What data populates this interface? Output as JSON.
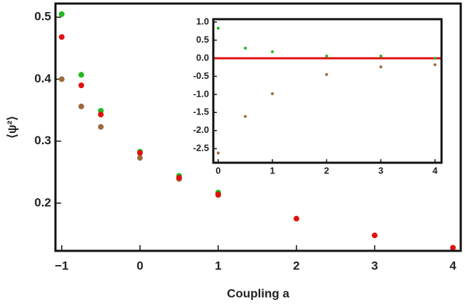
{
  "chart_data": [
    {
      "type": "scatter",
      "xlabel": "Coupling a",
      "ylabel": "⟨ψ²⟩",
      "x": [
        -1,
        -0.75,
        -0.5,
        0,
        0.5,
        1,
        2,
        3,
        4
      ],
      "series": [
        {
          "color": "#22b822",
          "values": [
            0.505,
            0.407,
            0.349,
            0.283,
            0.244,
            0.217,
            null,
            null,
            null
          ]
        },
        {
          "color": "#9b6b3c",
          "values": [
            0.4,
            0.356,
            0.323,
            0.273,
            0.239,
            0.213,
            null,
            null,
            null
          ]
        },
        {
          "color": "#e01010",
          "values": [
            0.468,
            0.39,
            0.343,
            0.281,
            0.241,
            0.214,
            0.175,
            0.148,
            0.128
          ]
        }
      ],
      "xlim": [
        -1.08,
        4.1
      ],
      "ylim": [
        0.123,
        0.522
      ],
      "xticks": [
        {
          "value": -1,
          "label": "−1"
        },
        0,
        1,
        2,
        3,
        4
      ],
      "yticks": [
        0.2,
        0.3,
        0.4,
        0.5
      ]
    },
    {
      "type": "scatter",
      "x": [
        0,
        0.5,
        1,
        2,
        3,
        4
      ],
      "series": [
        {
          "color": "#22b822",
          "values": [
            0.83,
            0.28,
            0.18,
            0.06,
            0.06,
            0
          ]
        },
        {
          "color": "#9b6b3c",
          "values": [
            -2.62,
            -1.61,
            -0.98,
            -0.45,
            -0.24,
            -0.18
          ]
        }
      ],
      "hline": 0,
      "hline_color": "#e01010",
      "xlim": [
        -0.09,
        4.12
      ],
      "ylim": [
        -2.89,
        1.08
      ],
      "xticks": [
        0,
        1,
        2,
        3,
        4
      ],
      "yticks": [
        {
          "value": 1,
          "label": "1.0"
        },
        0.5,
        {
          "value": 0,
          "label": "0.0"
        },
        -0.5,
        {
          "value": -1,
          "label": "-1.0"
        },
        -1.5,
        {
          "value": -2,
          "label": "-2.0"
        },
        -2.5
      ]
    }
  ]
}
